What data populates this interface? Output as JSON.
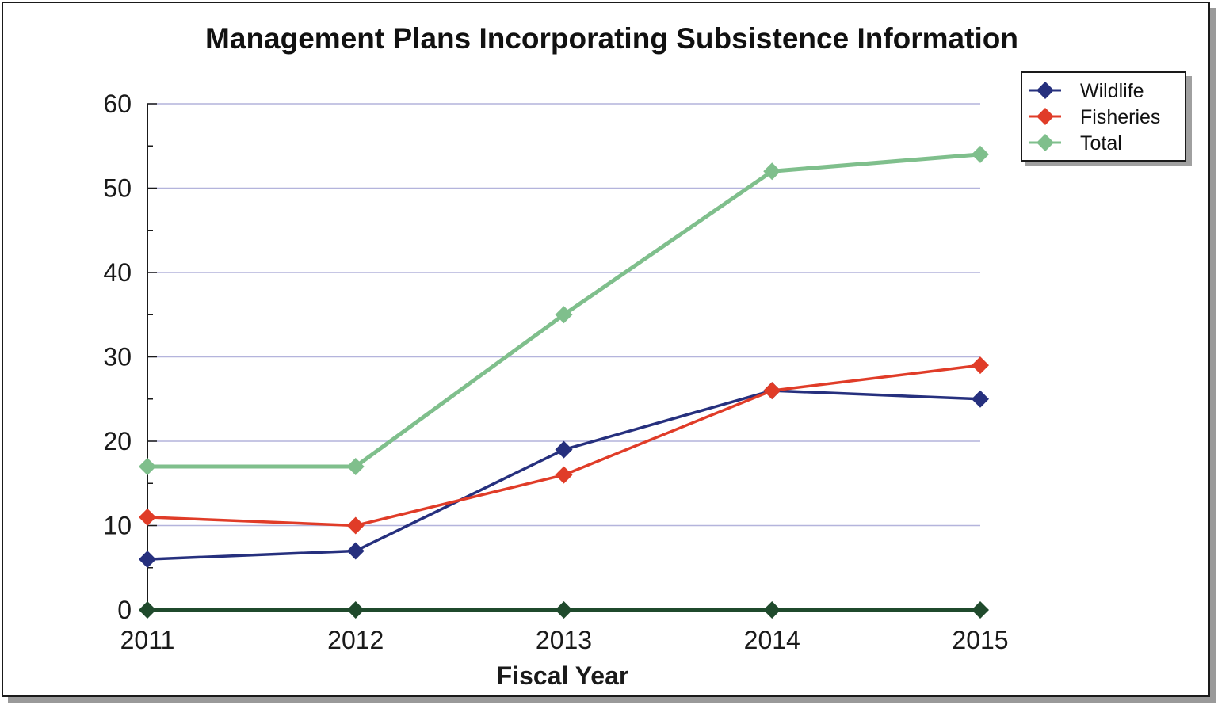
{
  "chart_data": {
    "type": "line",
    "title": "Management Plans Incorporating Subsistence Information",
    "xlabel": "Fiscal Year",
    "ylabel": "",
    "categories": [
      "2011",
      "2012",
      "2013",
      "2014",
      "2015"
    ],
    "yticks": [
      0,
      10,
      20,
      30,
      40,
      50,
      60
    ],
    "ylim": [
      0,
      60
    ],
    "grid": true,
    "legend_position": "top-right",
    "series": [
      {
        "name": "Wildlife",
        "values": [
          6,
          7,
          19,
          26,
          25
        ],
        "color": "#26307e"
      },
      {
        "name": "Fisheries",
        "values": [
          11,
          10,
          16,
          26,
          29
        ],
        "color": "#e03c28"
      },
      {
        "name": "Total",
        "values": [
          17,
          17,
          35,
          52,
          54
        ],
        "color": "#7fbf8c"
      }
    ],
    "baseline_color": "#1f4a2c"
  }
}
